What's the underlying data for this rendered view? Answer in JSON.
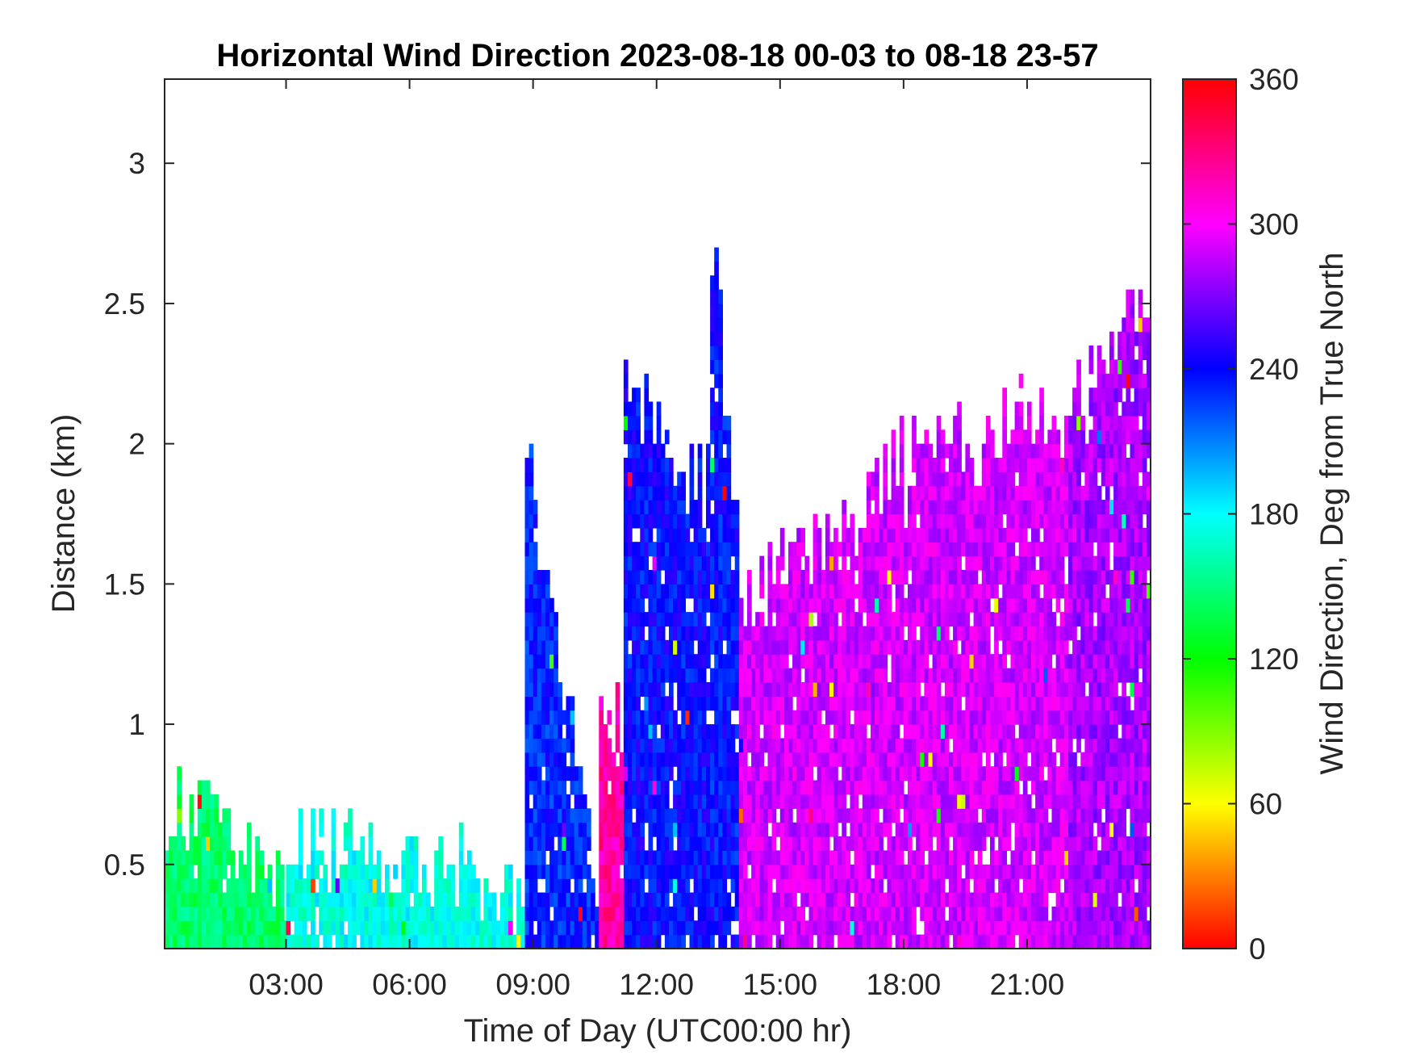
{
  "chart_data": {
    "type": "heatmap",
    "title": "Horizontal Wind Direction 2023-08-18 00-03 to 08-18 23-57",
    "xlabel": "Time of Day (UTC00:00 hr)",
    "ylabel": "Distance (km)",
    "colorbar_label": "Wind Direction, Deg from True North",
    "colormap": "hsv",
    "xlim": [
      0.05,
      24.0
    ],
    "ylim": [
      0.2,
      3.3
    ],
    "clim": [
      0,
      360
    ],
    "x_ticks": [
      3,
      6,
      9,
      12,
      15,
      18,
      21
    ],
    "x_tick_labels": [
      "03:00",
      "06:00",
      "09:00",
      "12:00",
      "15:00",
      "18:00",
      "21:00"
    ],
    "y_ticks": [
      0.5,
      1,
      1.5,
      2,
      2.5,
      3
    ],
    "y_tick_labels": [
      "0.5",
      "1",
      "1.5",
      "2",
      "2.5",
      "3"
    ],
    "colorbar_ticks": [
      0,
      60,
      120,
      180,
      240,
      300,
      360
    ],
    "colorbar_tick_labels": [
      "0",
      "60",
      "120",
      "180",
      "240",
      "300",
      "360"
    ],
    "grid": false,
    "legend": "colorbar-right",
    "regimes": [
      {
        "x": [
          0.05,
          3.0
        ],
        "y_top": [
          0.7,
          0.45
        ],
        "direction": 145
      },
      {
        "x": [
          3.0,
          8.8
        ],
        "y_top": [
          0.55,
          0.4
        ],
        "direction": 175
      },
      {
        "x": [
          8.8,
          10.5
        ],
        "y_top": [
          1.9,
          0.4
        ],
        "direction": 232
      },
      {
        "x": [
          10.6,
          11.2
        ],
        "y_top": [
          1.0,
          1.0
        ],
        "direction": 322
      },
      {
        "x": [
          11.2,
          13.2
        ],
        "y_top": [
          2.2,
          1.8
        ],
        "direction": 238
      },
      {
        "x": [
          13.3,
          14.0
        ],
        "y_top": [
          2.7,
          1.6
        ],
        "direction": 236
      },
      {
        "x": [
          14.0,
          18.0
        ],
        "y_top": [
          1.4,
          1.9
        ],
        "direction": 290
      },
      {
        "x": [
          18.0,
          22.0
        ],
        "y_top": [
          1.9,
          2.1
        ],
        "direction": 290
      },
      {
        "x": [
          22.0,
          24.0
        ],
        "y_top": [
          2.1,
          2.6
        ],
        "direction": 280
      }
    ]
  }
}
